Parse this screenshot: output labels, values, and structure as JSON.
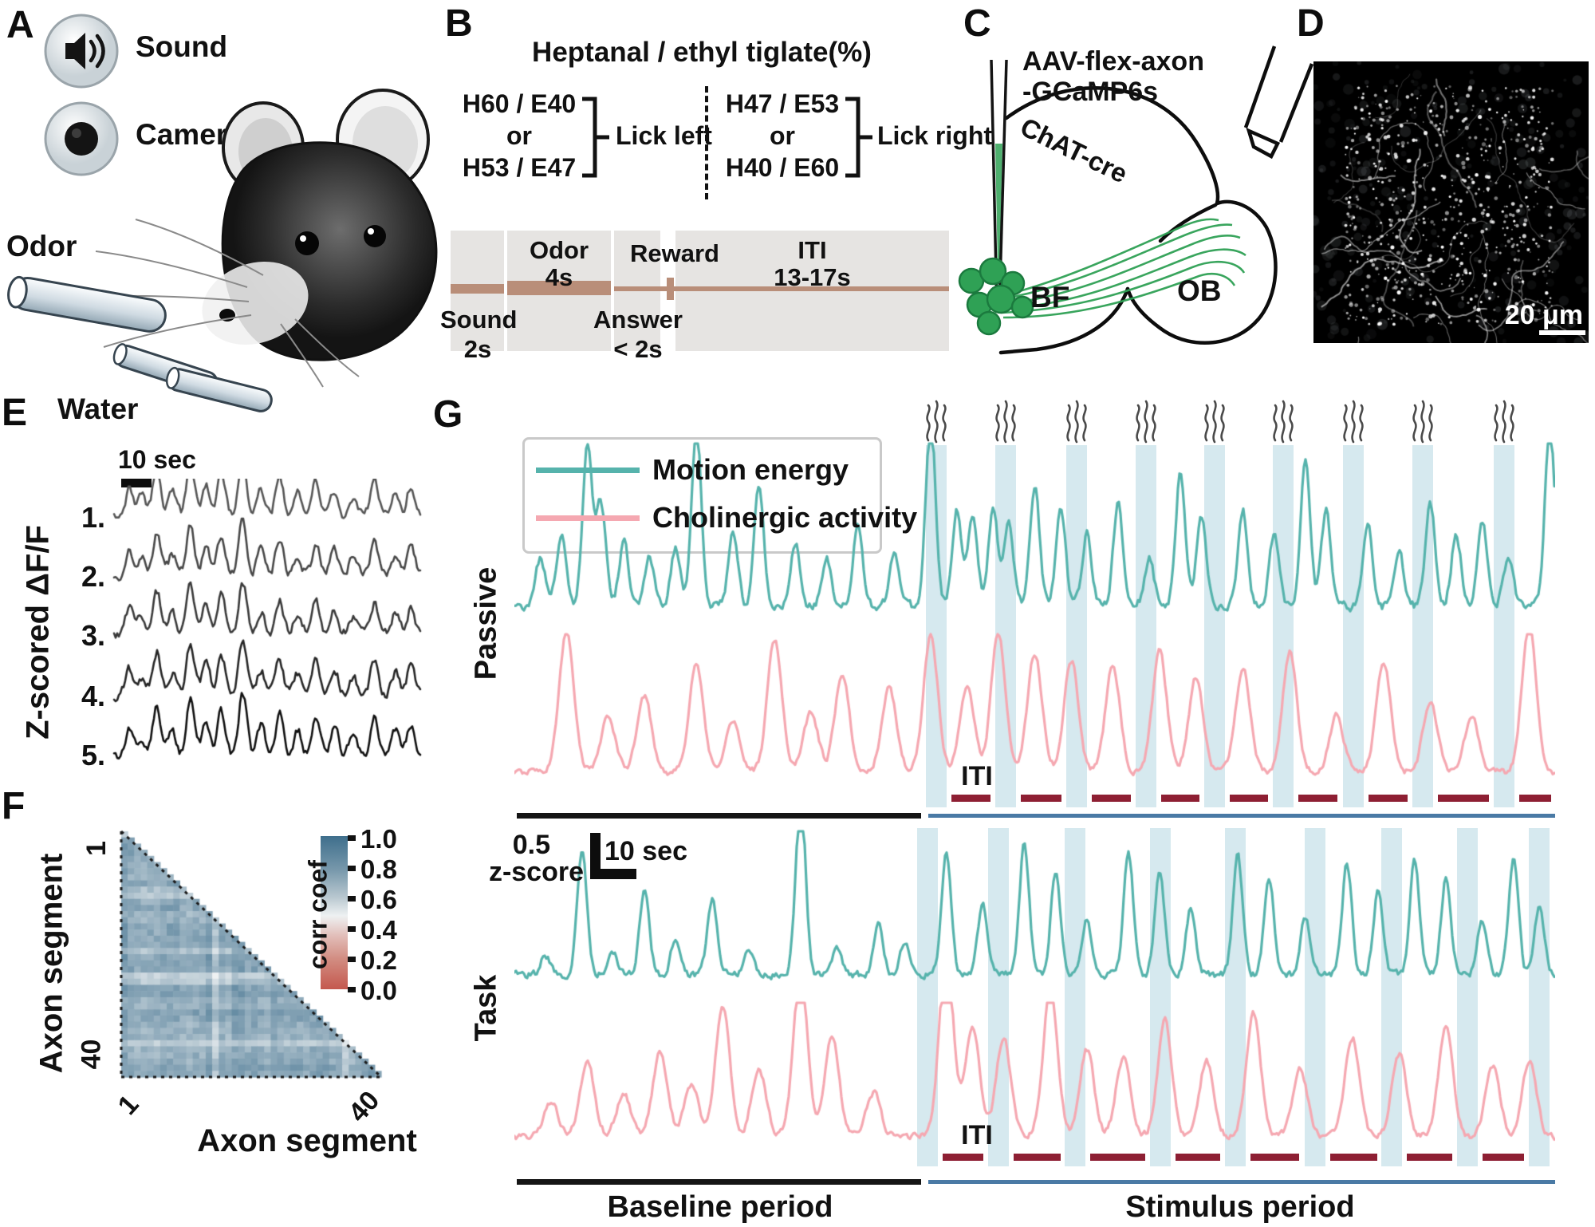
{
  "panels": {
    "A": {
      "letter": "A",
      "sound": "Sound",
      "camera": "Camera",
      "odor": "Odor",
      "water": "Water"
    },
    "B": {
      "letter": "B",
      "title": "Heptanal / ethyl tiglate(%)",
      "left": {
        "top": "H60 / E40",
        "mid": "or",
        "bottom": "H53 / E47",
        "action": "Lick left"
      },
      "right": {
        "top": "H47 / E53",
        "mid": "or",
        "bottom": "H40 / E60",
        "action": "Lick right"
      },
      "timeline": {
        "sound": "Sound",
        "sound_dur": "2s",
        "odor": "Odor",
        "odor_dur": "4s",
        "reward": "Reward",
        "answer": "Answer",
        "answer_dur": "< 2s",
        "iti": "ITI",
        "iti_dur": "13-17s"
      }
    },
    "C": {
      "letter": "C",
      "virus1": "AAV-flex-axon",
      "virus2": "-GCaMP6s",
      "strain": "ChAT-cre",
      "bf": "BF",
      "ob": "OB"
    },
    "D": {
      "letter": "D",
      "scalebar": "20 μm"
    },
    "E": {
      "letter": "E",
      "scalebar": "10 sec",
      "ylabel": "Z-scored ΔF/F",
      "ids": [
        "1.",
        "2.",
        "3.",
        "4.",
        "5."
      ]
    },
    "F": {
      "letter": "F",
      "ylabel": "Axon segment",
      "xlabel": "Axon segment",
      "ytick_top": "1",
      "ytick_bottom": "40",
      "xtick_left": "1",
      "xtick_right": "40",
      "cbar_label": "corr coef",
      "cbar_ticks": [
        "1.0",
        "0.8",
        "0.6",
        "0.4",
        "0.2",
        "0.0"
      ]
    },
    "G": {
      "letter": "G",
      "legend_motion": "Motion energy",
      "legend_chol": "Cholinergic activity",
      "passive": "Passive",
      "task": "Task",
      "iti_passive": "ITI",
      "iti_task": "ITI",
      "amp_val": "0.5",
      "amp_unit": "z-score",
      "time_scale": "10 sec",
      "baseline": "Baseline period",
      "stimulus": "Stimulus period"
    }
  },
  "colors": {
    "teal": "#56b3ac",
    "pink": "#f5a8b1",
    "band": "#d6e9ef",
    "iti_dash": "#8e1f33",
    "black_line": "#151515",
    "blue_line": "#4a7aa5",
    "timeline_bar": "#b98e79",
    "timeline_block": "#e6e4e2",
    "green": "#2fa155",
    "heat_high": "#3e6e8c",
    "heat_mid": "#eef1f2",
    "heat_low": "#c4584e"
  },
  "chart_data": [
    {
      "id": "E",
      "type": "line",
      "ylabel": "Z-scored ΔF/F",
      "time_scalebar": "10 sec",
      "noise": 5,
      "sigma": 5,
      "peak_x": [
        0.05,
        0.09,
        0.14,
        0.19,
        0.25,
        0.3,
        0.35,
        0.42,
        0.48,
        0.54,
        0.6,
        0.66,
        0.72,
        0.78,
        0.85,
        0.92,
        0.97
      ],
      "peak_amp": [
        35,
        25,
        60,
        30,
        70,
        40,
        55,
        75,
        35,
        50,
        30,
        45,
        35,
        25,
        45,
        30,
        40
      ],
      "traces": [
        {
          "id": "1.",
          "seed": 101,
          "color": "#565656",
          "amp": 1.0
        },
        {
          "id": "2.",
          "seed": 102,
          "color": "#484848",
          "amp": 0.92
        },
        {
          "id": "3.",
          "seed": 103,
          "color": "#3a3a3a",
          "amp": 0.9
        },
        {
          "id": "4.",
          "seed": 104,
          "color": "#262626",
          "amp": 0.95
        },
        {
          "id": "5.",
          "seed": 105,
          "color": "#101010",
          "amp": 1.05
        }
      ]
    },
    {
      "id": "F",
      "type": "heatmap",
      "n": 40,
      "xlabel": "Axon segment",
      "ylabel": "Axon segment",
      "x_range": [
        1,
        40
      ],
      "y_range": [
        1,
        40
      ],
      "triangle": "lower",
      "value_base": 0.78,
      "value_jitter": 0.1,
      "value_clip": [
        0.5,
        0.93
      ],
      "seed": 7,
      "colorbar": {
        "label": "corr coef",
        "ticks": [
          1.0,
          0.8,
          0.6,
          0.4,
          0.2,
          0.0
        ],
        "high": "#3e6e8c",
        "mid": "#eef1f2",
        "low": "#c4584e"
      }
    },
    {
      "id": "G",
      "type": "line",
      "units": "z-score",
      "amp_scalebar": 0.5,
      "time_scalebar": "10 sec",
      "baseline_end_frac": 0.391,
      "stimulus_start_frac": 0.398,
      "odor_events_passive": [
        0.405,
        0.472,
        0.54,
        0.607,
        0.673,
        0.739,
        0.806,
        0.873,
        0.951
      ],
      "odor_events_task": [
        0.397,
        0.465,
        0.539,
        0.621,
        0.693,
        0.769,
        0.843,
        0.916,
        0.985
      ],
      "sections": [
        {
          "name": "Passive",
          "traces": [
            {
              "name": "Motion energy",
              "color": "teal",
              "seed": 21,
              "noise": 5,
              "sigma": 6,
              "peaks": [
                [
                  0.025,
                  60
                ],
                [
                  0.045,
                  90
                ],
                [
                  0.07,
                  200
                ],
                [
                  0.083,
                  130
                ],
                [
                  0.105,
                  80
                ],
                [
                  0.13,
                  60
                ],
                [
                  0.155,
                  70
                ],
                [
                  0.175,
                  230
                ],
                [
                  0.21,
                  90
                ],
                [
                  0.235,
                  150
                ],
                [
                  0.27,
                  80
                ],
                [
                  0.3,
                  60
                ],
                [
                  0.33,
                  100
                ],
                [
                  0.365,
                  60
                ],
                [
                  0.4,
                  240
                ],
                [
                  0.425,
                  120
                ],
                [
                  0.44,
                  110
                ],
                [
                  0.46,
                  120
                ],
                [
                  0.475,
                  100
                ],
                [
                  0.5,
                  150
                ],
                [
                  0.525,
                  120
                ],
                [
                  0.55,
                  90
                ],
                [
                  0.58,
                  130
                ],
                [
                  0.61,
                  60
                ],
                [
                  0.64,
                  170
                ],
                [
                  0.66,
                  110
                ],
                [
                  0.7,
                  120
                ],
                [
                  0.73,
                  90
                ],
                [
                  0.76,
                  180
                ],
                [
                  0.78,
                  120
                ],
                [
                  0.82,
                  100
                ],
                [
                  0.85,
                  70
                ],
                [
                  0.88,
                  130
                ],
                [
                  0.905,
                  90
                ],
                [
                  0.93,
                  110
                ],
                [
                  0.955,
                  60
                ],
                [
                  0.995,
                  230
                ]
              ]
            },
            {
              "name": "Cholinergic activity",
              "color": "pink",
              "seed": 22,
              "noise": 3.5,
              "sigma": 9,
              "peaks": [
                [
                  0.05,
                  175
                ],
                [
                  0.09,
                  70
                ],
                [
                  0.125,
                  95
                ],
                [
                  0.175,
                  135
                ],
                [
                  0.21,
                  65
                ],
                [
                  0.25,
                  165
                ],
                [
                  0.285,
                  75
                ],
                [
                  0.315,
                  125
                ],
                [
                  0.36,
                  105
                ],
                [
                  0.4,
                  170
                ],
                [
                  0.435,
                  105
                ],
                [
                  0.465,
                  175
                ],
                [
                  0.5,
                  150
                ],
                [
                  0.535,
                  140
                ],
                [
                  0.575,
                  135
                ],
                [
                  0.62,
                  150
                ],
                [
                  0.655,
                  120
                ],
                [
                  0.7,
                  130
                ],
                [
                  0.745,
                  150
                ],
                [
                  0.79,
                  70
                ],
                [
                  0.835,
                  140
                ],
                [
                  0.88,
                  90
                ],
                [
                  0.92,
                  70
                ],
                [
                  0.975,
                  185
                ]
              ]
            }
          ]
        },
        {
          "name": "Task",
          "traces": [
            {
              "name": "Motion energy",
              "color": "teal",
              "seed": 23,
              "noise": 4,
              "sigma": 6,
              "peaks": [
                [
                  0.03,
                  25
                ],
                [
                  0.065,
                  160
                ],
                [
                  0.095,
                  25
                ],
                [
                  0.125,
                  105
                ],
                [
                  0.155,
                  45
                ],
                [
                  0.19,
                  95
                ],
                [
                  0.225,
                  30
                ],
                [
                  0.275,
                  230
                ],
                [
                  0.31,
                  35
                ],
                [
                  0.35,
                  60
                ],
                [
                  0.375,
                  40
                ],
                [
                  0.415,
                  150
                ],
                [
                  0.45,
                  90
                ],
                [
                  0.49,
                  165
                ],
                [
                  0.52,
                  130
                ],
                [
                  0.55,
                  70
                ],
                [
                  0.59,
                  155
                ],
                [
                  0.62,
                  135
                ],
                [
                  0.65,
                  85
                ],
                [
                  0.695,
                  150
                ],
                [
                  0.725,
                  125
                ],
                [
                  0.76,
                  70
                ],
                [
                  0.8,
                  140
                ],
                [
                  0.83,
                  105
                ],
                [
                  0.865,
                  145
                ],
                [
                  0.895,
                  120
                ],
                [
                  0.93,
                  70
                ],
                [
                  0.96,
                  150
                ],
                [
                  0.985,
                  85
                ]
              ]
            },
            {
              "name": "Cholinergic activity",
              "color": "pink",
              "seed": 24,
              "noise": 3.5,
              "sigma": 9,
              "peaks": [
                [
                  0.035,
                  45
                ],
                [
                  0.07,
                  95
                ],
                [
                  0.105,
                  55
                ],
                [
                  0.14,
                  105
                ],
                [
                  0.17,
                  65
                ],
                [
                  0.2,
                  165
                ],
                [
                  0.235,
                  85
                ],
                [
                  0.275,
                  205
                ],
                [
                  0.305,
                  125
                ],
                [
                  0.345,
                  55
                ],
                [
                  0.415,
                  225
                ],
                [
                  0.44,
                  140
                ],
                [
                  0.47,
                  125
                ],
                [
                  0.515,
                  185
                ],
                [
                  0.55,
                  110
                ],
                [
                  0.585,
                  100
                ],
                [
                  0.625,
                  145
                ],
                [
                  0.665,
                  95
                ],
                [
                  0.71,
                  155
                ],
                [
                  0.755,
                  85
                ],
                [
                  0.805,
                  125
                ],
                [
                  0.85,
                  105
                ],
                [
                  0.895,
                  135
                ],
                [
                  0.94,
                  90
                ],
                [
                  0.975,
                  95
                ]
              ]
            }
          ]
        }
      ]
    }
  ]
}
